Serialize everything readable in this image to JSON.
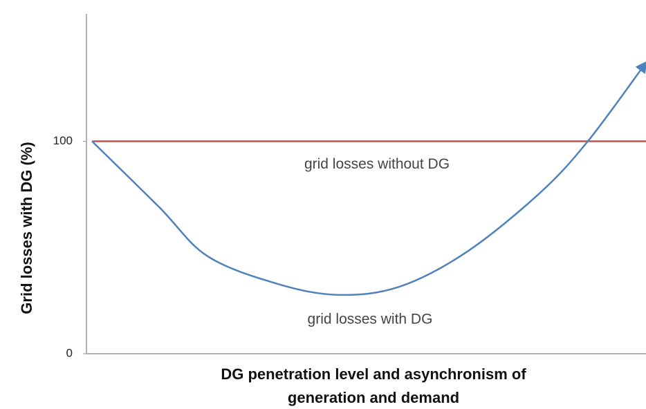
{
  "chart_data": {
    "type": "line",
    "ylabel": "Grid losses with DG  (%)",
    "xlabel": [
      "DG penetration level and asynchronism of",
      "generation and demand"
    ],
    "xlim": [
      0,
      100
    ],
    "ylim": [
      0,
      160
    ],
    "yticks": [
      0,
      100
    ],
    "series": [
      {
        "name": "grid losses without DG",
        "color": "#c0504d",
        "x": [
          1,
          100
        ],
        "values": [
          100,
          100
        ]
      },
      {
        "name": "grid losses with DG",
        "color": "#4f81bd",
        "x": [
          1,
          13,
          21.6,
          34,
          45,
          56,
          68,
          81,
          89.6,
          100
        ],
        "values": [
          100,
          69,
          46,
          33,
          27.7,
          31.6,
          48,
          75.6,
          100,
          137
        ],
        "arrow": true
      }
    ]
  }
}
